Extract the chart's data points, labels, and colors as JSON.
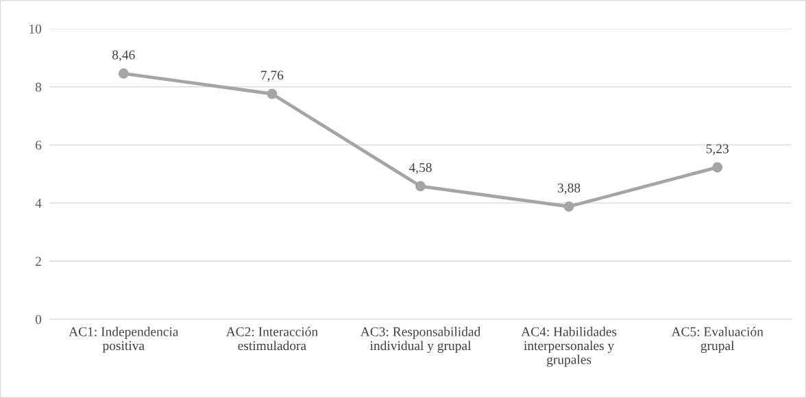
{
  "chart_data": {
    "type": "line",
    "categories": [
      "AC1: Independencia\npositiva",
      "AC2: Interacción\nestimuladora",
      "AC3: Responsabilidad\nindividual y grupal",
      "AC4: Habilidades\ninterpersonales y\ngrupales",
      "AC5: Evaluación\ngrupal"
    ],
    "series": [
      {
        "color": "#a5a5a5",
        "values": [
          8.46,
          7.76,
          4.58,
          3.88,
          5.23
        ],
        "value_labels": [
          "8,46",
          "7,76",
          "4,58",
          "3,88",
          "5,23"
        ]
      }
    ],
    "ylim": [
      0,
      10
    ],
    "yticks": [
      0,
      2,
      4,
      6,
      8,
      10
    ],
    "grid": "y",
    "marker": "circle",
    "line_style": "solid",
    "legend": false
  }
}
